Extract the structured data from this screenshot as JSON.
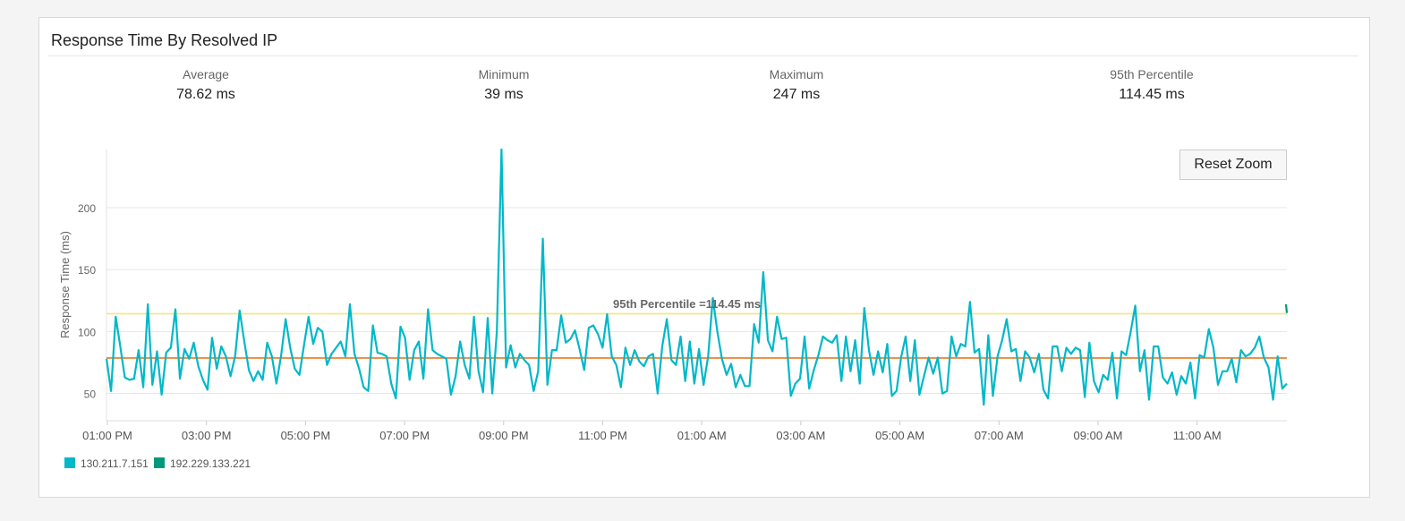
{
  "panel": {
    "title": "Response Time By Resolved IP"
  },
  "stats": [
    {
      "label": "Average",
      "value": "78.62 ms"
    },
    {
      "label": "Minimum",
      "value": "39 ms"
    },
    {
      "label": "Maximum",
      "value": "247 ms"
    },
    {
      "label": "95th Percentile",
      "value": "114.45 ms"
    }
  ],
  "reset_zoom_label": "Reset Zoom",
  "chart_data": {
    "type": "line",
    "title": "",
    "xlabel": "",
    "ylabel": "Response Time (ms)",
    "ylim": [
      28,
      247
    ],
    "yticks": [
      50,
      100,
      150,
      200
    ],
    "xtick_labels": [
      "01:00 PM",
      "03:00 PM",
      "05:00 PM",
      "07:00 PM",
      "09:00 PM",
      "11:00 PM",
      "01:00 AM",
      "03:00 AM",
      "05:00 AM",
      "07:00 AM",
      "09:00 AM",
      "11:00 AM"
    ],
    "xlim": [
      "12:59 PM",
      "12:48 PM"
    ],
    "grid": true,
    "legend": "bottom-left",
    "series": [
      {
        "name": "130.211.7.151",
        "color": "#00b8c8",
        "values": [
          78,
          52,
          112,
          88,
          63,
          61,
          62,
          85,
          55,
          122,
          57,
          84,
          49,
          83,
          87,
          118,
          62,
          86,
          78,
          91,
          72,
          61,
          53,
          95,
          70,
          88,
          80,
          64,
          80,
          117,
          92,
          69,
          60,
          68,
          61,
          91,
          80,
          58,
          80,
          110,
          87,
          70,
          65,
          89,
          112,
          90,
          103,
          100,
          73,
          82,
          87,
          92,
          80,
          122,
          82,
          70,
          55,
          52,
          105,
          83,
          82,
          80,
          58,
          46,
          104,
          95,
          61,
          85,
          92,
          62,
          118,
          85,
          82,
          80,
          78,
          49,
          64,
          92,
          73,
          62,
          112,
          68,
          51,
          111,
          50,
          100,
          247,
          71,
          89,
          71,
          82,
          77,
          73,
          52,
          68,
          175,
          57,
          85,
          85,
          113,
          91,
          94,
          101,
          86,
          69,
          103,
          105,
          98,
          87,
          114,
          80,
          73,
          55,
          87,
          73,
          85,
          76,
          72,
          80,
          82,
          50,
          88,
          110,
          77,
          73,
          96,
          60,
          92,
          58,
          86,
          57,
          80,
          127,
          100,
          78,
          65,
          74,
          55,
          65,
          56,
          56,
          106,
          91,
          148,
          93,
          84,
          112,
          94,
          95,
          48,
          58,
          62,
          96,
          54,
          69,
          81,
          96,
          93,
          91,
          97,
          60,
          96,
          68,
          93,
          58,
          119,
          85,
          65,
          84,
          67,
          90,
          48,
          52,
          79,
          96,
          60,
          93,
          49,
          64,
          79,
          66,
          79,
          50,
          52,
          96,
          80,
          90,
          88,
          124,
          83,
          86,
          41,
          97,
          48,
          80,
          93,
          110,
          84,
          86,
          60,
          84,
          79,
          67,
          82,
          53,
          46,
          88,
          88,
          68,
          87,
          82,
          87,
          85,
          47,
          91,
          60,
          51,
          65,
          61,
          83,
          46,
          84,
          81,
          100,
          121,
          68,
          85,
          45,
          88,
          88,
          63,
          58,
          67,
          49,
          64,
          58,
          75,
          46,
          81,
          79,
          102,
          87,
          57,
          68,
          68,
          78,
          59,
          85,
          80,
          82,
          87,
          96,
          79,
          71,
          45,
          80,
          54,
          58
        ]
      },
      {
        "name": "192.229.133.221",
        "color": "#00997a",
        "values": [
          122,
          115
        ]
      }
    ],
    "reference_lines": [
      {
        "label": "95th Percentile =114.45 ms",
        "value": 114.45,
        "color": "#f0e87a"
      },
      {
        "label": "",
        "value": 78.62,
        "color": "#e8781e"
      }
    ]
  }
}
